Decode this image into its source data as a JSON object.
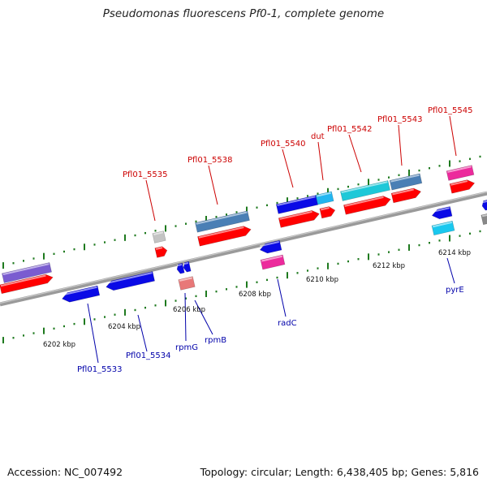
{
  "title": "Pseudomonas fluorescens Pf0-1, complete genome",
  "footer": {
    "accession": "Accession: NC_007492",
    "summary": "Topology: circular; Length: 6,438,405 bp; Genes: 5,816"
  },
  "scale_labels": [
    "6202 kbp",
    "6204 kbp",
    "6206 kbp",
    "6208 kbp",
    "6210 kbp",
    "6212 kbp",
    "6214 kbp"
  ],
  "top_gene_labels": [
    "Pfl01_5535",
    "Pfl01_5538",
    "Pfl01_5540",
    "dut",
    "Pfl01_5542",
    "Pfl01_5543",
    "Pfl01_5545"
  ],
  "bottom_gene_labels": [
    "Pfl01_5533",
    "Pfl01_5534",
    "rpmG",
    "rpmB",
    "radC",
    "pyrE"
  ],
  "colors": {
    "backbone": "#8a8a8a",
    "tick": "#1f7a1f",
    "label_red": "#cc0000",
    "label_blue": "#0000aa",
    "feature_red": "#ff0000",
    "feature_blue": "#0a0ae6",
    "feature_steel": "#4a7fb5",
    "feature_cyan": "#1ec8d8",
    "feature_magenta": "#ec2a9c",
    "feature_purple": "#7a5cd0"
  }
}
